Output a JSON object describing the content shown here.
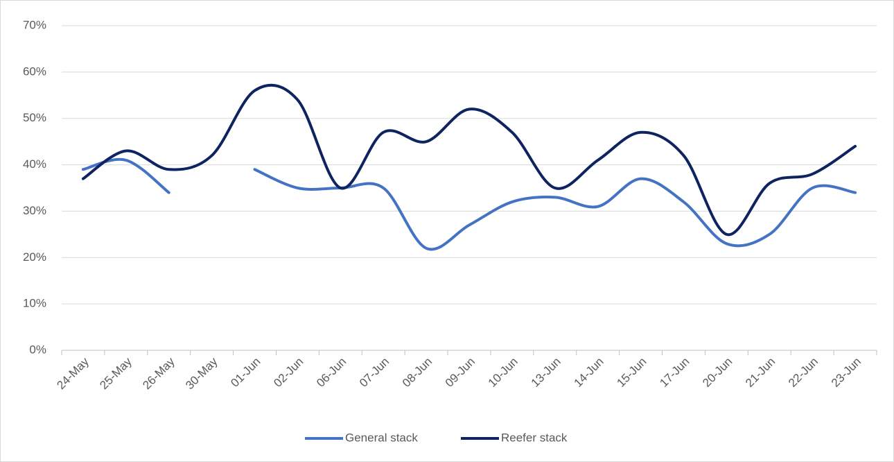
{
  "chart_data": {
    "type": "line",
    "categories": [
      "24-May",
      "25-May",
      "26-May",
      "30-May",
      "01-Jun",
      "02-Jun",
      "06-Jun",
      "07-Jun",
      "08-Jun",
      "09-Jun",
      "10-Jun",
      "13-Jun",
      "14-Jun",
      "15-Jun",
      "17-Jun",
      "20-Jun",
      "21-Jun",
      "22-Jun",
      "23-Jun"
    ],
    "series": [
      {
        "name": "General stack",
        "color": "#4472c4",
        "values": [
          39,
          41,
          34,
          null,
          39,
          35,
          35,
          35,
          22,
          27,
          32,
          33,
          31,
          37,
          32,
          23,
          25,
          35,
          34
        ]
      },
      {
        "name": "Reefer stack",
        "color": "#0e2460",
        "values": [
          37,
          43,
          39,
          42,
          56,
          54,
          35,
          47,
          45,
          52,
          47,
          35,
          41,
          47,
          42,
          25,
          36,
          38,
          44
        ]
      }
    ],
    "ylim": [
      0,
      70
    ],
    "yticks": [
      {
        "value": 0,
        "label": "0%"
      },
      {
        "value": 10,
        "label": "10%"
      },
      {
        "value": 20,
        "label": "20%"
      },
      {
        "value": 30,
        "label": "30%"
      },
      {
        "value": 40,
        "label": "40%"
      },
      {
        "value": 50,
        "label": "50%"
      },
      {
        "value": 60,
        "label": "60%"
      },
      {
        "value": 70,
        "label": "70%"
      }
    ],
    "grid": true,
    "smooth": true,
    "legend": "bottom"
  }
}
